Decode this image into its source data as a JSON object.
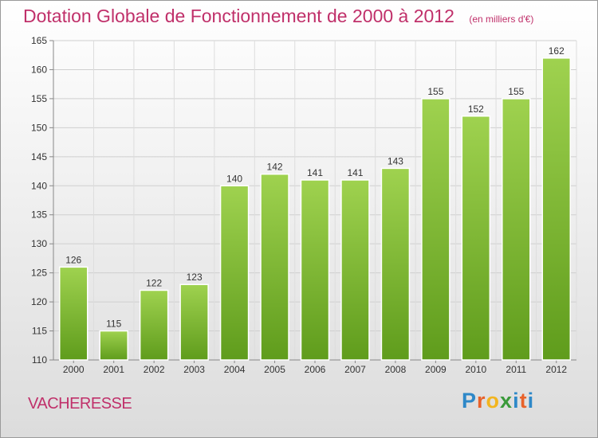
{
  "header": {
    "title": "Dotation Globale de Fonctionnement de 2000 à 2012",
    "unit": "(en milliers d'€)"
  },
  "footer": {
    "commune": "VACHERESSE",
    "logo_letters": [
      "P",
      "r",
      "o",
      "x",
      "i",
      "t",
      "i"
    ],
    "logo_colors": [
      "#2e88c8",
      "#e8622a",
      "#f2b51f",
      "#3a9a3a",
      "#2e88c8",
      "#e8622a",
      "#2e88c8"
    ]
  },
  "chart_data": {
    "type": "bar",
    "title": "Dotation Globale de Fonctionnement de 2000 à 2012",
    "subtitle": "(en milliers d'€)",
    "categories": [
      "2000",
      "2001",
      "2002",
      "2003",
      "2004",
      "2005",
      "2006",
      "2007",
      "2008",
      "2009",
      "2010",
      "2011",
      "2012"
    ],
    "values": [
      126,
      115,
      122,
      123,
      140,
      142,
      141,
      141,
      143,
      155,
      152,
      155,
      162
    ],
    "data_labels": [
      "126",
      "115",
      "122",
      "123",
      "140",
      "142",
      "141",
      "141",
      "143",
      "155",
      "152",
      "155",
      "162"
    ],
    "ylim": [
      110,
      165
    ],
    "yticks": [
      110,
      115,
      120,
      125,
      130,
      135,
      140,
      145,
      150,
      155,
      160,
      165
    ],
    "ytick_labels": [
      "110",
      "115",
      "120",
      "125",
      "130",
      "135",
      "140",
      "145",
      "150",
      "155",
      "160",
      "165"
    ],
    "grid": true,
    "bar_color_top": "#9fd24f",
    "bar_color_bottom": "#5f9c1c"
  }
}
